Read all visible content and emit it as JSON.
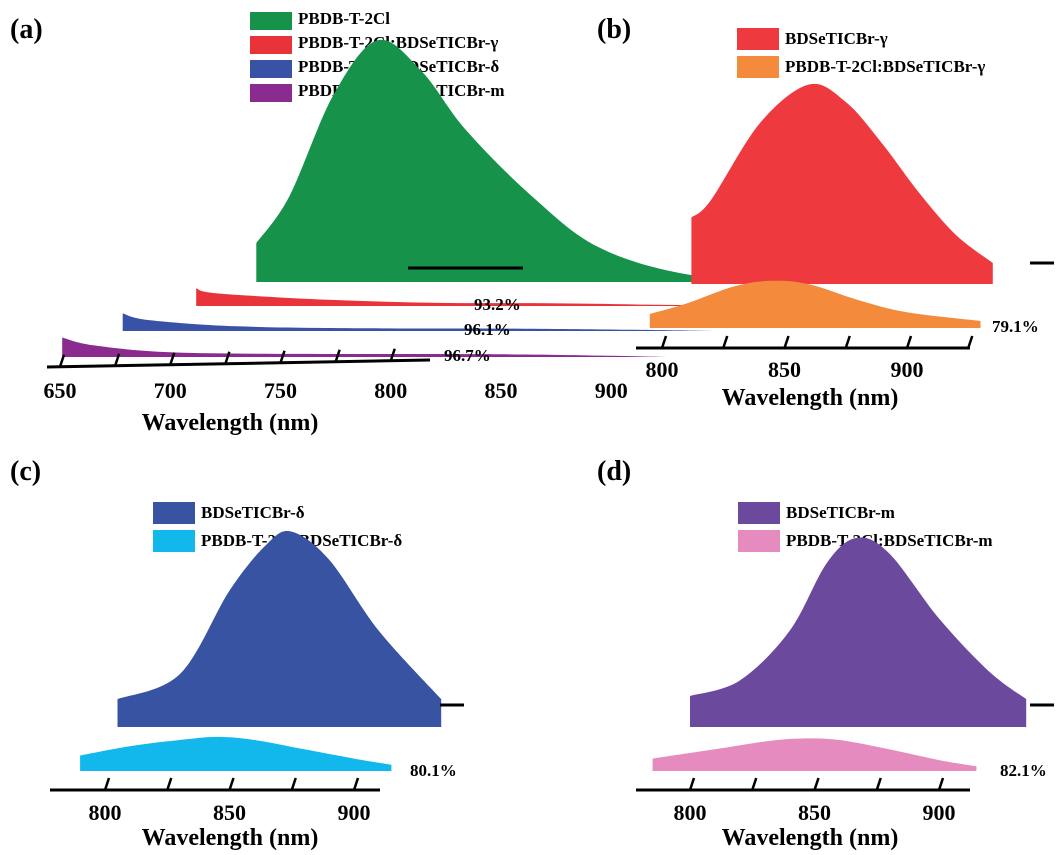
{
  "chart_data": [
    {
      "panel": "(a)",
      "type": "area",
      "xlabel": "Wavelength (nm)",
      "ylabel": "",
      "xticks": [
        650,
        700,
        750,
        800,
        850,
        900
      ],
      "series": [
        {
          "name": "PBDB-T-2Cl",
          "color": "#16924a",
          "x": [
            705,
            720,
            740,
            760,
            780,
            800,
            830,
            860,
            900,
            950
          ],
          "y": [
            1.0,
            2.2,
            4.8,
            6.2,
            5.4,
            3.9,
            2.2,
            0.9,
            0.2,
            0.0
          ],
          "annotation": ""
        },
        {
          "name": "PBDB-T-2Cl:BDSeTICBr-γ",
          "color": "#e8333a",
          "x": [
            690,
            700,
            750,
            800,
            850,
            900,
            940
          ],
          "y": [
            0.45,
            0.32,
            0.16,
            0.08,
            0.07,
            0.03,
            0.0
          ],
          "annotation": "93.2%"
        },
        {
          "name": "PBDB-T-2Cl:BDSeTICBr-δ",
          "color": "#3a52a6",
          "x": [
            668,
            680,
            720,
            780,
            850,
            900,
            935
          ],
          "y": [
            0.45,
            0.28,
            0.12,
            0.07,
            0.06,
            0.03,
            0.0
          ],
          "annotation": "96.1%"
        },
        {
          "name": "PBDB-T-2Cl:BDSeTICBr-m",
          "color": "#8a2c8f",
          "x": [
            651,
            665,
            700,
            760,
            850,
            900,
            925
          ],
          "y": [
            0.5,
            0.3,
            0.12,
            0.08,
            0.07,
            0.03,
            0.0
          ],
          "annotation": "96.7%"
        }
      ]
    },
    {
      "panel": "(b)",
      "type": "area",
      "xlabel": "Wavelength (nm)",
      "ylabel": "",
      "xticks": [
        800,
        850,
        900
      ],
      "series": [
        {
          "name": "BDSeTICBr-γ",
          "color": "#ee3a3f",
          "x": [
            812,
            820,
            840,
            860,
            875,
            890,
            905,
            920,
            935
          ],
          "y": [
            1.9,
            2.4,
            4.6,
            5.7,
            5.2,
            4.0,
            2.6,
            1.4,
            0.6
          ],
          "annotation": ""
        },
        {
          "name": "PBDB-T-2Cl:BDSeTICBr-γ",
          "color": "#f38a3c",
          "x": [
            795,
            810,
            830,
            845,
            860,
            880,
            900,
            930
          ],
          "y": [
            0.4,
            0.7,
            1.2,
            1.35,
            1.25,
            0.8,
            0.45,
            0.2
          ],
          "annotation": "79.1%"
        }
      ]
    },
    {
      "panel": "(c)",
      "type": "area",
      "xlabel": "Wavelength (nm)",
      "ylabel": "",
      "xticks": [
        800,
        850,
        900
      ],
      "series": [
        {
          "name": "BDSeTICBr-δ",
          "color": "#3953a3",
          "x": [
            805,
            830,
            850,
            865,
            875,
            890,
            910,
            935
          ],
          "y": [
            0.9,
            1.7,
            4.4,
            5.9,
            6.3,
            5.4,
            3.1,
            0.9
          ],
          "annotation": ""
        },
        {
          "name": "PBDB-T-2Cl:BDSeTICBr-δ",
          "color": "#12b8ec",
          "x": [
            790,
            810,
            830,
            845,
            860,
            880,
            900,
            915
          ],
          "y": [
            0.5,
            0.8,
            1.0,
            1.1,
            1.0,
            0.7,
            0.4,
            0.2
          ],
          "annotation": "80.1%"
        }
      ]
    },
    {
      "panel": "(d)",
      "type": "area",
      "xlabel": "Wavelength (nm)",
      "ylabel": "",
      "xticks": [
        800,
        850,
        900
      ],
      "series": [
        {
          "name": "BDSeTICBr-m",
          "color": "#6b4a9e",
          "x": [
            800,
            820,
            840,
            855,
            867,
            880,
            900,
            920,
            935
          ],
          "y": [
            1.0,
            1.5,
            3.1,
            5.3,
            6.1,
            5.6,
            3.5,
            1.8,
            0.9
          ],
          "annotation": ""
        },
        {
          "name": "PBDB-T-2Cl:BDSeTICBr-m",
          "color": "#e58bbf",
          "x": [
            785,
            810,
            830,
            845,
            860,
            880,
            900,
            915
          ],
          "y": [
            0.4,
            0.7,
            0.95,
            1.05,
            1.0,
            0.7,
            0.35,
            0.15
          ],
          "annotation": "82.1%"
        }
      ]
    }
  ]
}
